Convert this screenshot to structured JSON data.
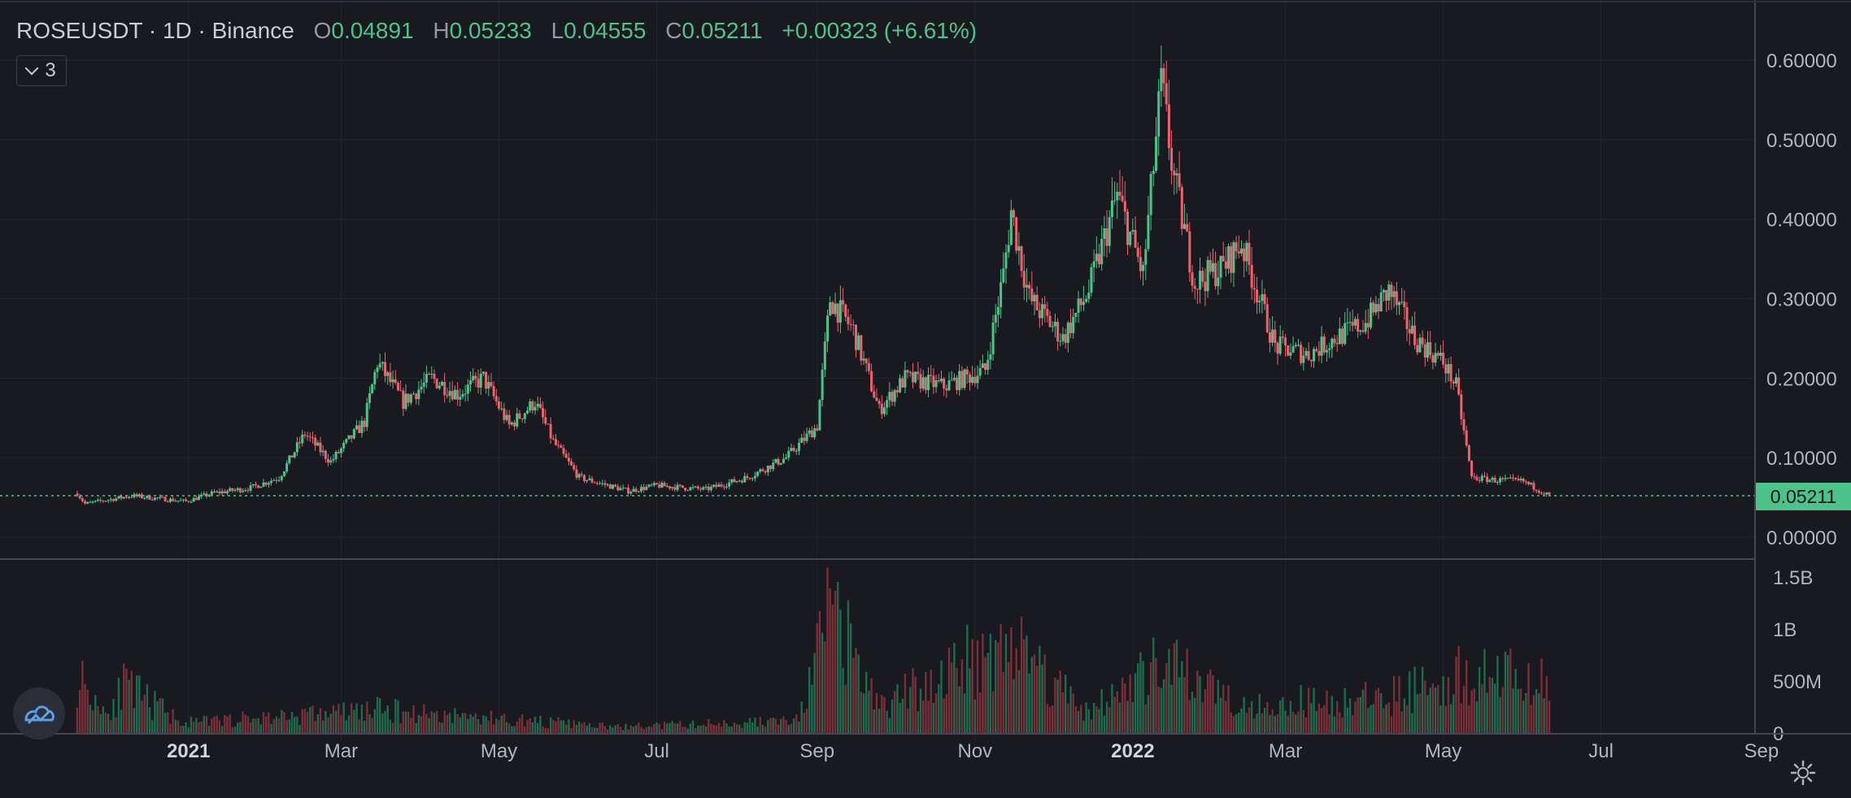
{
  "legend": {
    "symbol": "ROSEUSDT · 1D · Binance",
    "o_label": "O",
    "o_value": "0.04891",
    "h_label": "H",
    "h_value": "0.05233",
    "l_label": "L",
    "l_value": "0.04555",
    "c_label": "C",
    "c_value": "0.05211",
    "change": "+0.00323 (+6.61%)"
  },
  "indicator_count": "3",
  "last_price_label": "0.05211",
  "colors": {
    "up": "#4cc38a",
    "down": "#f0616d",
    "background": "#181a20",
    "grid": "#22252d"
  },
  "icons": {
    "indicators": "chevron-down-icon",
    "logo": "tradingview-logo-icon",
    "settings": "gear-icon"
  },
  "chart_data": [
    {
      "type": "candlestick",
      "title": "ROSEUSDT · 1D · Binance",
      "x_tick_labels": [
        "2021",
        "Mar",
        "May",
        "Jul",
        "Sep",
        "Nov",
        "2022",
        "Mar",
        "May",
        "Jul",
        "Sep"
      ],
      "y_tick_labels": [
        "0.60000",
        "0.50000",
        "0.40000",
        "0.30000",
        "0.20000",
        "0.10000",
        "0.00000"
      ],
      "ylim": [
        0,
        0.6
      ],
      "x_range": [
        "2020-11-19",
        "2022-06-11"
      ],
      "last_price": 0.05211,
      "price_path": [
        [
          "2020-11-19",
          0.055
        ],
        [
          "2020-11-22",
          0.042
        ],
        [
          "2020-12-10",
          0.052
        ],
        [
          "2020-12-31",
          0.045
        ],
        [
          "2021-01-10",
          0.055
        ],
        [
          "2021-01-25",
          0.062
        ],
        [
          "2021-02-05",
          0.075
        ],
        [
          "2021-02-15",
          0.13
        ],
        [
          "2021-02-25",
          0.095
        ],
        [
          "2021-03-10",
          0.145
        ],
        [
          "2021-03-15",
          0.22
        ],
        [
          "2021-03-25",
          0.17
        ],
        [
          "2021-04-05",
          0.2
        ],
        [
          "2021-04-15",
          0.18
        ],
        [
          "2021-04-25",
          0.2
        ],
        [
          "2021-05-05",
          0.14
        ],
        [
          "2021-05-15",
          0.17
        ],
        [
          "2021-05-22",
          0.12
        ],
        [
          "2021-06-01",
          0.075
        ],
        [
          "2021-06-20",
          0.058
        ],
        [
          "2021-07-01",
          0.065
        ],
        [
          "2021-07-20",
          0.06
        ],
        [
          "2021-08-05",
          0.075
        ],
        [
          "2021-08-20",
          0.1
        ],
        [
          "2021-09-01",
          0.14
        ],
        [
          "2021-09-06",
          0.3
        ],
        [
          "2021-09-15",
          0.26
        ],
        [
          "2021-09-25",
          0.16
        ],
        [
          "2021-10-05",
          0.2
        ],
        [
          "2021-10-20",
          0.19
        ],
        [
          "2021-11-05",
          0.21
        ],
        [
          "2021-11-12",
          0.33
        ],
        [
          "2021-11-15",
          0.41
        ],
        [
          "2021-11-22",
          0.3
        ],
        [
          "2021-12-05",
          0.25
        ],
        [
          "2021-12-15",
          0.31
        ],
        [
          "2021-12-26",
          0.43
        ],
        [
          "2022-01-05",
          0.33
        ],
        [
          "2022-01-12",
          0.57
        ],
        [
          "2022-01-17",
          0.45
        ],
        [
          "2022-01-25",
          0.32
        ],
        [
          "2022-02-05",
          0.34
        ],
        [
          "2022-02-12",
          0.37
        ],
        [
          "2022-02-25",
          0.24
        ],
        [
          "2022-03-10",
          0.23
        ],
        [
          "2022-03-20",
          0.25
        ],
        [
          "2022-04-01",
          0.27
        ],
        [
          "2022-04-10",
          0.31
        ],
        [
          "2022-04-20",
          0.25
        ],
        [
          "2022-05-01",
          0.22
        ],
        [
          "2022-05-06",
          0.19
        ],
        [
          "2022-05-12",
          0.075
        ],
        [
          "2022-05-20",
          0.072
        ],
        [
          "2022-06-01",
          0.07
        ],
        [
          "2022-06-11",
          0.0521
        ]
      ]
    },
    {
      "type": "bar",
      "title": "Volume",
      "x_tick_labels": [
        "2021",
        "Mar",
        "May",
        "Jul",
        "Sep",
        "Nov",
        "2022",
        "Mar",
        "May",
        "Jul",
        "Sep"
      ],
      "y_tick_labels": [
        "1.5B",
        "1B",
        "500M",
        "0"
      ],
      "ylim": [
        0,
        1500000000
      ],
      "volume_path": [
        [
          "2020-11-19",
          700000000
        ],
        [
          "2020-11-30",
          250000000
        ],
        [
          "2020-12-07",
          550000000
        ],
        [
          "2020-12-31",
          120000000
        ],
        [
          "2021-02-15",
          220000000
        ],
        [
          "2021-03-15",
          280000000
        ],
        [
          "2021-06-15",
          70000000
        ],
        [
          "2021-08-25",
          150000000
        ],
        [
          "2021-09-06",
          1450000000
        ],
        [
          "2021-09-25",
          300000000
        ],
        [
          "2021-11-14",
          1120000000
        ],
        [
          "2021-12-15",
          250000000
        ],
        [
          "2022-01-12",
          800000000
        ],
        [
          "2022-02-15",
          350000000
        ],
        [
          "2022-04-05",
          400000000
        ],
        [
          "2022-05-12",
          750000000
        ],
        [
          "2022-06-11",
          560000000
        ]
      ]
    }
  ]
}
